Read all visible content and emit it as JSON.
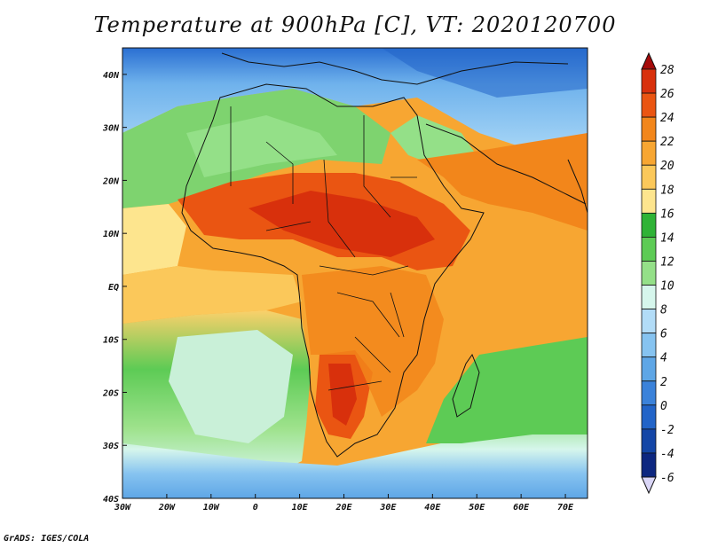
{
  "title": "Temperature at 900hPa [C], VT: 2020120700",
  "credit": "GrADS: IGES/COLA",
  "map": {
    "lon_range": [
      -30,
      75
    ],
    "lat_range": [
      -40,
      45
    ],
    "x_ticks": [
      "30W",
      "20W",
      "10W",
      "0",
      "10E",
      "20E",
      "30E",
      "40E",
      "50E",
      "60E",
      "70E"
    ],
    "y_ticks": [
      "40N",
      "30N",
      "20N",
      "10N",
      "EQ",
      "10S",
      "20S",
      "30S",
      "40S"
    ],
    "lat_tick_values": [
      40,
      30,
      20,
      10,
      0,
      -10,
      -20,
      -30,
      -40
    ],
    "lon_tick_values": [
      -30,
      -20,
      -10,
      0,
      10,
      20,
      30,
      40,
      50,
      60,
      70
    ]
  },
  "colorbar": {
    "labels": [
      "28",
      "26",
      "24",
      "22",
      "20",
      "18",
      "16",
      "14",
      "12",
      "10",
      "8",
      "6",
      "4",
      "2",
      "0",
      "-2",
      "-4",
      "-6"
    ],
    "colors": [
      "#a50a0a",
      "#d8300c",
      "#ea5512",
      "#f2861b",
      "#f7a632",
      "#fbc85a",
      "#fde58e",
      "#2fb336",
      "#5dcb55",
      "#94e088",
      "#d6f6ec",
      "#b2dcf7",
      "#86c3f0",
      "#5ea6e6",
      "#3b82da",
      "#2264c8",
      "#1446a6",
      "#0d2780",
      "#dad6f7"
    ]
  }
}
